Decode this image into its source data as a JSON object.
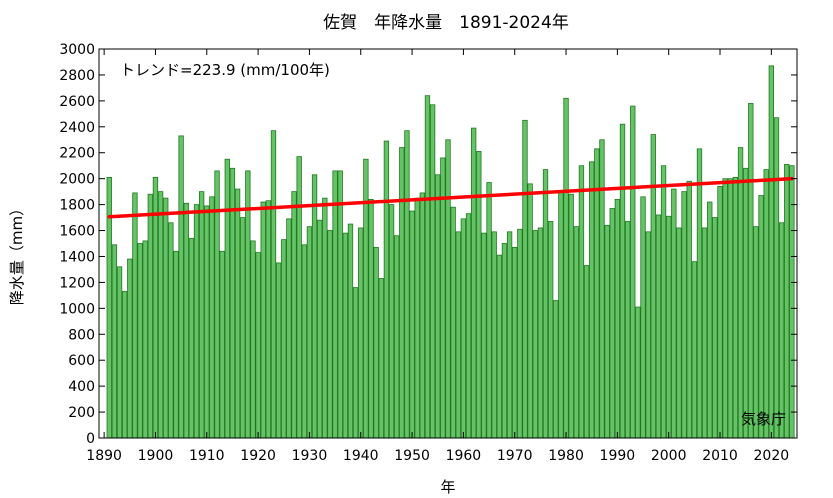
{
  "chart_data": {
    "type": "bar",
    "title": "佐賀　年降水量　1891-2024年",
    "xlabel": "年",
    "ylabel": "降水量（mm）",
    "trend_label": "トレンド=223.9 (mm/100年)",
    "source": "気象庁",
    "xlim": [
      1889,
      2025
    ],
    "ylim": [
      0,
      3000
    ],
    "x_ticks": [
      1890,
      1900,
      1910,
      1920,
      1930,
      1940,
      1950,
      1960,
      1970,
      1980,
      1990,
      2000,
      2010,
      2020
    ],
    "y_ticks": [
      0,
      200,
      400,
      600,
      800,
      1000,
      1200,
      1400,
      1600,
      1800,
      2000,
      2200,
      2400,
      2600,
      2800,
      3000
    ],
    "start_year": 1891,
    "values": [
      2010,
      1490,
      1320,
      1130,
      1380,
      1890,
      1500,
      1520,
      1880,
      2010,
      1900,
      1850,
      1660,
      1440,
      2330,
      1810,
      1540,
      1800,
      1900,
      1790,
      1860,
      2060,
      1440,
      2150,
      2080,
      1920,
      1700,
      2060,
      1520,
      1430,
      1820,
      1830,
      2370,
      1350,
      1530,
      1690,
      1900,
      2170,
      1490,
      1630,
      2030,
      1680,
      1850,
      1600,
      2060,
      2060,
      1580,
      1650,
      1160,
      1620,
      2150,
      1840,
      1470,
      1230,
      2290,
      1800,
      1560,
      2240,
      2370,
      1750,
      1850,
      1890,
      2640,
      2570,
      2030,
      2160,
      2300,
      1780,
      1590,
      1690,
      1730,
      2390,
      2210,
      1580,
      1970,
      1590,
      1410,
      1500,
      1590,
      1470,
      1610,
      2450,
      1960,
      1600,
      1620,
      2070,
      1670,
      1060,
      1900,
      2620,
      1880,
      1630,
      2100,
      1330,
      2130,
      2230,
      2300,
      1640,
      1770,
      1840,
      2420,
      1670,
      2560,
      1010,
      1860,
      1590,
      2340,
      1720,
      2100,
      1710,
      1920,
      1620,
      1900,
      1980,
      1360,
      2230,
      1620,
      1820,
      1700,
      1940,
      2000,
      2000,
      2010,
      2240,
      2080,
      2580,
      1630,
      1870,
      2070,
      2870,
      2470,
      1660,
      2110,
      2100
    ],
    "trend": {
      "slope_per_100yr": 223.9,
      "start_value": 1706,
      "end_value": 2000
    },
    "colors": {
      "bar_fill": "#66c266",
      "bar_stroke": "#1f7a1f",
      "trend": "#ff0000",
      "axis": "#000000"
    }
  }
}
